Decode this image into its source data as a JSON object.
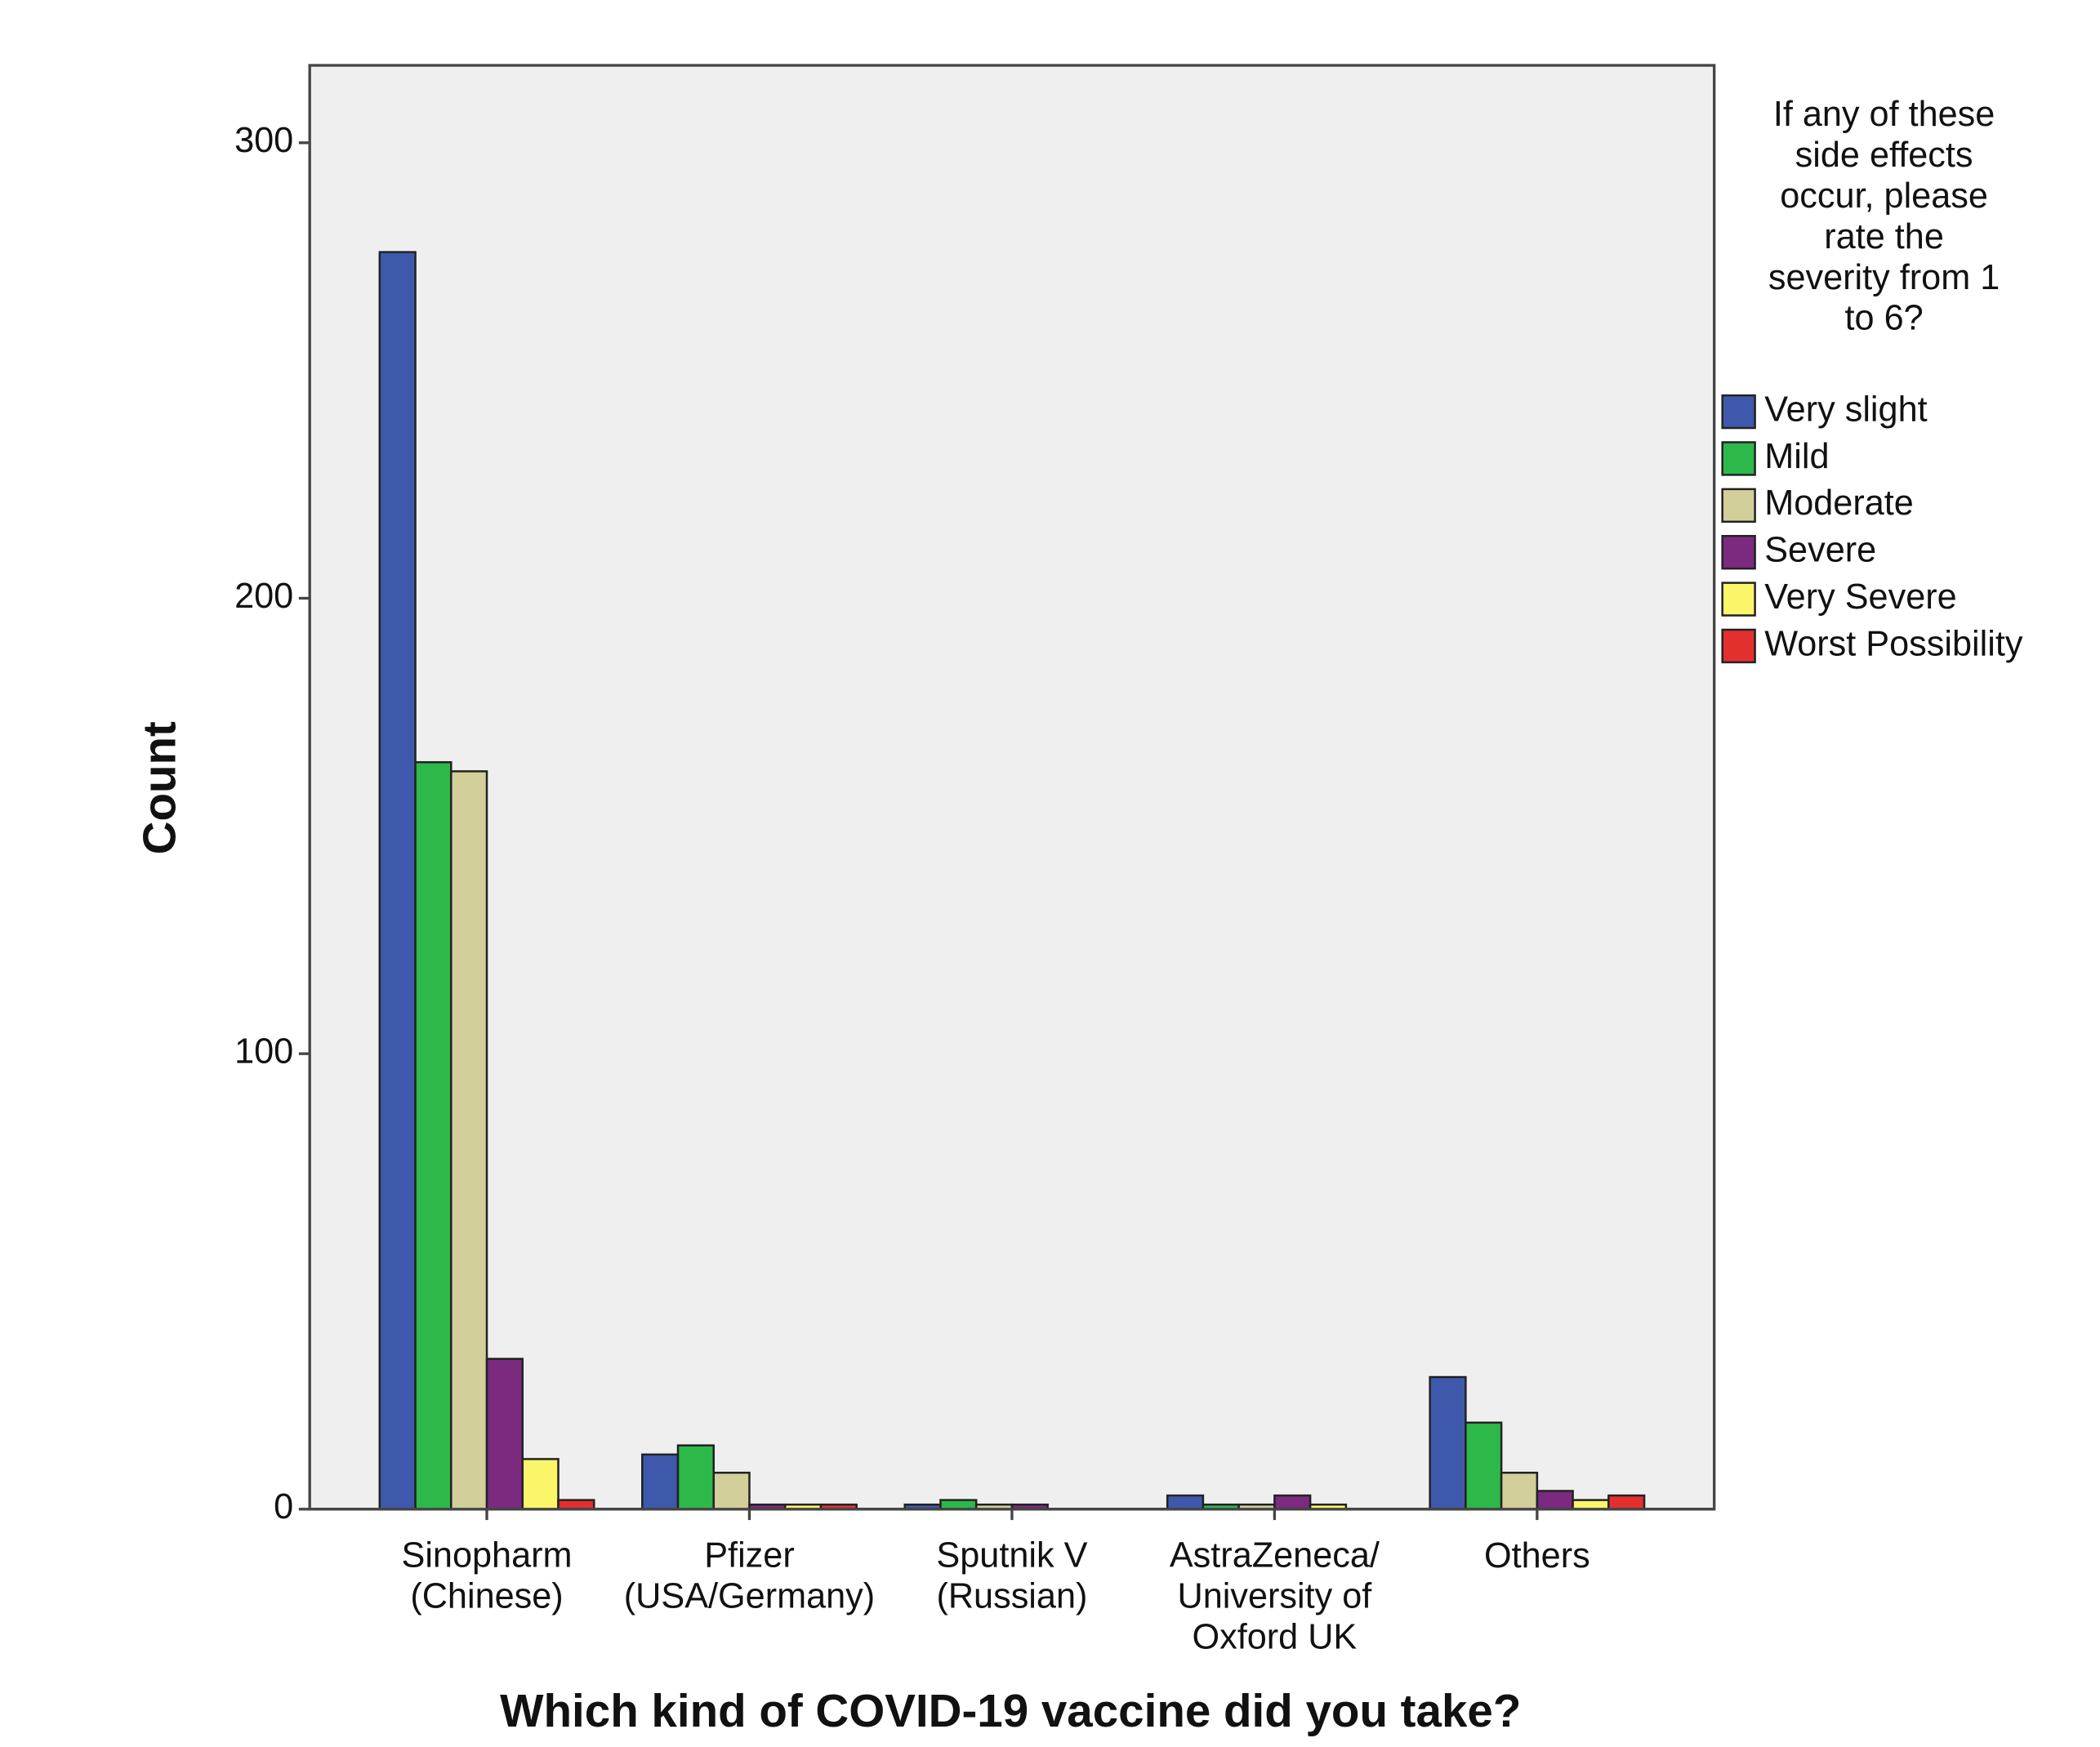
{
  "chart_data": {
    "type": "bar",
    "x_label": "Which kind of COVID-19 vaccine did you take?",
    "y_label": "Count",
    "legend_title": "If any of these\nside effects\noccur, please\nrate the\nseverity from 1\nto 6?",
    "categories": [
      "Sinopharm\n(Chinese)",
      "Pfizer\n(USA/Germany)",
      "Sputnik V\n(Russian)",
      "AstraZeneca/\nUniversity of\nOxford UK",
      "Others"
    ],
    "series": [
      {
        "name": "Very slight",
        "color": "#3e58ac",
        "values": [
          276,
          12,
          1,
          3,
          29
        ]
      },
      {
        "name": "Mild",
        "color": "#2db84a",
        "values": [
          164,
          14,
          2,
          1,
          19
        ]
      },
      {
        "name": "Moderate",
        "color": "#d3cf9b",
        "values": [
          162,
          8,
          1,
          1,
          8
        ]
      },
      {
        "name": "Severe",
        "color": "#7b2a7f",
        "values": [
          33,
          1,
          1,
          3,
          4
        ]
      },
      {
        "name": "Very Severe",
        "color": "#fbf56a",
        "values": [
          11,
          1,
          0,
          1,
          2
        ]
      },
      {
        "name": "Worst  Possibility",
        "color": "#e3302f",
        "values": [
          2,
          1,
          0,
          0,
          3
        ]
      }
    ],
    "ylim": [
      0,
      317
    ],
    "yticks": [
      0,
      100,
      200,
      300
    ],
    "legend": "right"
  }
}
